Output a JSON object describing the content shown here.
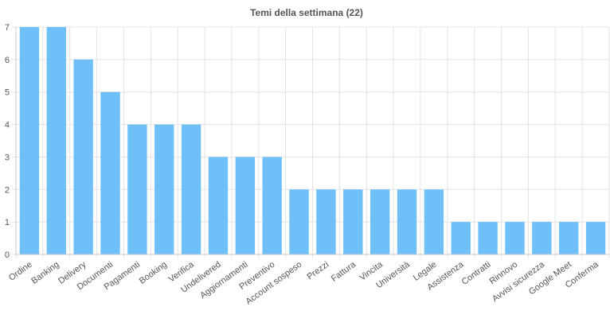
{
  "colors": {
    "bar": "#6fbff9",
    "grid": "#e3e3e3",
    "axis": "#c8c8c8",
    "text": "#555555",
    "title": "#555555"
  },
  "chart_data": {
    "type": "bar",
    "title": "Temi della settimana (22)",
    "xlabel": "",
    "ylabel": "",
    "ylim": [
      0,
      7
    ],
    "yticks": [
      0,
      1,
      2,
      3,
      4,
      5,
      6,
      7
    ],
    "grid": true,
    "legend": "none",
    "categories": [
      "Ordine",
      "Banking",
      "Delivery",
      "Documenti",
      "Pagamenti",
      "Booking",
      "Verifica",
      "Undelivered",
      "Aggiornamenti",
      "Preventivo",
      "Account sospeso",
      "Prezzi",
      "Fattura",
      "Vincita",
      "Università",
      "Legale",
      "Assistenza",
      "Contratti",
      "Rinnovo",
      "Avvisi sicurezza",
      "Google Meet",
      "Conferma"
    ],
    "values": [
      7,
      7,
      6,
      5,
      4,
      4,
      4,
      3,
      3,
      3,
      2,
      2,
      2,
      2,
      2,
      2,
      1,
      1,
      1,
      1,
      1,
      1
    ]
  }
}
